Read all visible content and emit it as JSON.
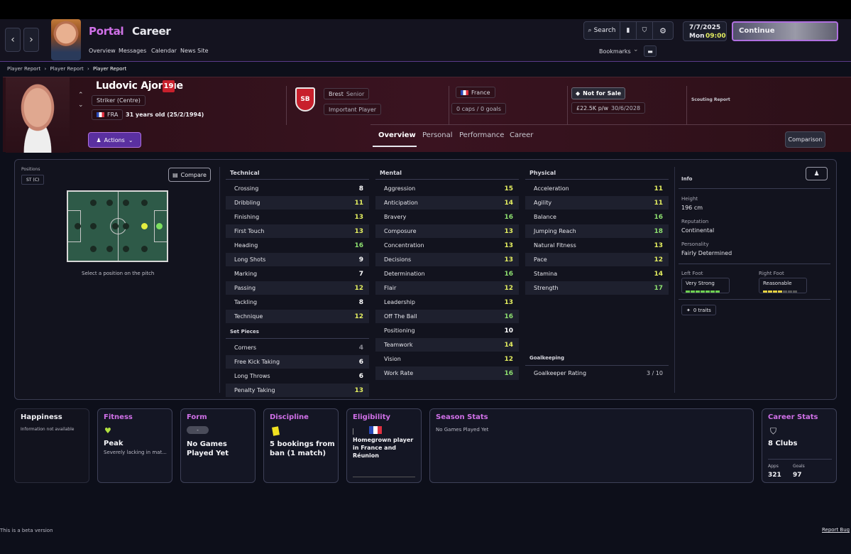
{
  "header": {
    "portal": "Portal",
    "career": "Career",
    "links": [
      "Overview",
      "Messages",
      "Calendar",
      "News Site"
    ],
    "search": "Search",
    "bookmarks": "Bookmarks",
    "date": "7/7/2025",
    "day": "Mon",
    "time": "09:00",
    "continue": "Continue"
  },
  "breadcrumb": [
    "Player Report",
    "Player Report",
    "Player Report"
  ],
  "player": {
    "name": "Ludovic Ajorque",
    "number": "19",
    "position": "Striker (Centre)",
    "nation_code": "FRA",
    "age": "31 years old (25/2/1994)",
    "actions": "Actions",
    "club": "Brest",
    "squad": "Senior",
    "status": "Important Player",
    "nation": "France",
    "caps": "0 caps / 0 goals",
    "sale": "Not for Sale",
    "wage": "£22.5K p/w",
    "contract": "30/6/2028",
    "scouting": "Scouting Report"
  },
  "tabs": [
    "Overview",
    "Personal",
    "Performance",
    "Career"
  ],
  "comparison": "Comparison",
  "positions": {
    "label": "Positions",
    "value": "ST (C)",
    "compare": "Compare",
    "hint": "Select a position on the pitch"
  },
  "technical": {
    "title": "Technical",
    "items": [
      [
        "Crossing",
        "8",
        "w"
      ],
      [
        "Dribbling",
        "11",
        "y"
      ],
      [
        "Finishing",
        "13",
        "y"
      ],
      [
        "First Touch",
        "13",
        "y"
      ],
      [
        "Heading",
        "16",
        "g"
      ],
      [
        "Long Shots",
        "9",
        "w"
      ],
      [
        "Marking",
        "7",
        "w"
      ],
      [
        "Passing",
        "12",
        "y"
      ],
      [
        "Tackling",
        "8",
        "w"
      ],
      [
        "Technique",
        "12",
        "y"
      ]
    ]
  },
  "setpieces": {
    "title": "Set Pieces",
    "items": [
      [
        "Corners",
        "4",
        "gray"
      ],
      [
        "Free Kick Taking",
        "6",
        "w"
      ],
      [
        "Long Throws",
        "6",
        "w"
      ],
      [
        "Penalty Taking",
        "13",
        "y"
      ]
    ]
  },
  "mental": {
    "title": "Mental",
    "items": [
      [
        "Aggression",
        "15",
        "y"
      ],
      [
        "Anticipation",
        "14",
        "y"
      ],
      [
        "Bravery",
        "16",
        "g"
      ],
      [
        "Composure",
        "13",
        "y"
      ],
      [
        "Concentration",
        "13",
        "y"
      ],
      [
        "Decisions",
        "13",
        "y"
      ],
      [
        "Determination",
        "16",
        "g"
      ],
      [
        "Flair",
        "12",
        "y"
      ],
      [
        "Leadership",
        "13",
        "y"
      ],
      [
        "Off The Ball",
        "16",
        "g"
      ],
      [
        "Positioning",
        "10",
        "w"
      ],
      [
        "Teamwork",
        "14",
        "y"
      ],
      [
        "Vision",
        "12",
        "y"
      ],
      [
        "Work Rate",
        "16",
        "g"
      ]
    ]
  },
  "physical": {
    "title": "Physical",
    "items": [
      [
        "Acceleration",
        "11",
        "y"
      ],
      [
        "Agility",
        "11",
        "y"
      ],
      [
        "Balance",
        "16",
        "g"
      ],
      [
        "Jumping Reach",
        "18",
        "g"
      ],
      [
        "Natural Fitness",
        "13",
        "y"
      ],
      [
        "Pace",
        "12",
        "y"
      ],
      [
        "Stamina",
        "14",
        "y"
      ],
      [
        "Strength",
        "17",
        "g"
      ]
    ]
  },
  "goalkeeping": {
    "title": "Goalkeeping",
    "label": "Goalkeeper Rating",
    "value": "3 / 10"
  },
  "info": {
    "title": "Info",
    "height_label": "Height",
    "height": "196 cm",
    "rep_label": "Reputation",
    "rep": "Continental",
    "pers_label": "Personality",
    "pers": "Fairly Determined",
    "lf_label": "Left Foot",
    "lf": "Very Strong",
    "rf_label": "Right Foot",
    "rf": "Reasonable",
    "traits": "0 traits"
  },
  "cards": {
    "happiness": {
      "title": "Happiness",
      "text": "Information not available"
    },
    "fitness": {
      "title": "Fitness",
      "big": "Peak",
      "small": "Severely lacking in mat..."
    },
    "form": {
      "title": "Form",
      "badge": "-",
      "big": "No Games Played Yet"
    },
    "discipline": {
      "title": "Discipline",
      "big": "5 bookings from ban (1 match)"
    },
    "eligibility": {
      "title": "Eligibility",
      "big": "Homegrown player in France and Réunion"
    },
    "season": {
      "title": "Season Stats",
      "text": "No Games Played Yet"
    },
    "career": {
      "title": "Career Stats",
      "clubs": "8 Clubs",
      "apps_label": "Apps",
      "apps": "321",
      "goals_label": "Goals",
      "goals": "97"
    }
  },
  "footer": {
    "beta": "This is a beta version",
    "report": "Report Bug"
  },
  "colors": {
    "accent": "#c070e8",
    "yellow": "#e4ee60",
    "green": "#8ee070"
  }
}
